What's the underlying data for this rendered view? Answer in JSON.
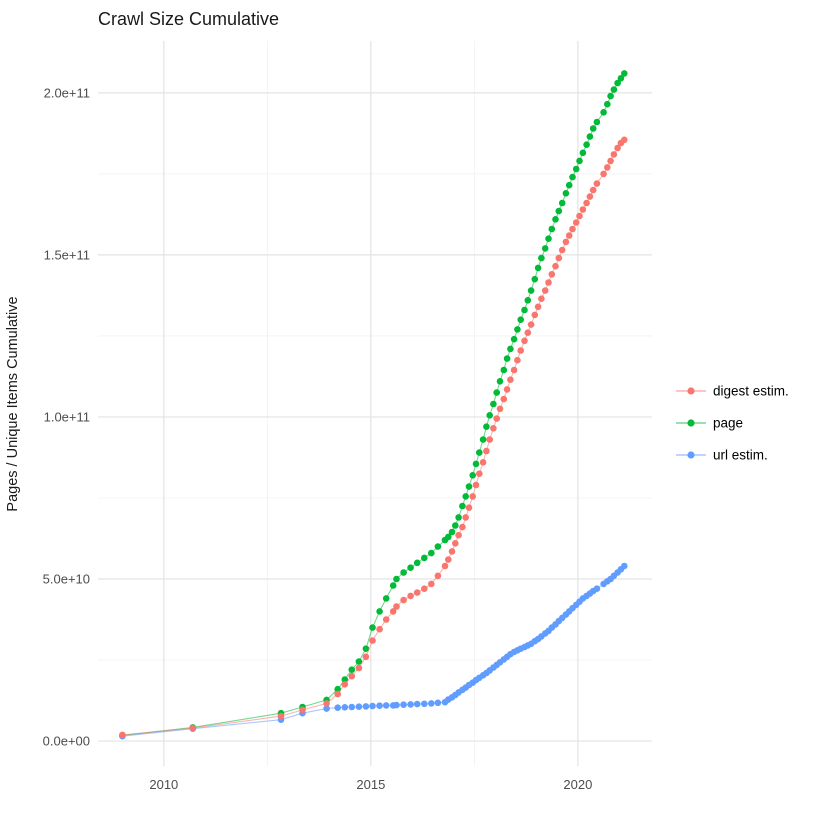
{
  "chart_data": {
    "type": "line",
    "title": "Crawl Size Cumulative",
    "xlabel": "",
    "ylabel": "Pages / Unique Items Cumulative",
    "grid": true,
    "legend_position": "right",
    "background": "#ffffff",
    "gridline_major_color": "#e3e3e3",
    "gridline_minor_color": "#f0f0f0",
    "xlim": [
      2008.41,
      2021.79
    ],
    "ylim": [
      -7700000000,
      216000000000
    ],
    "x_ticks": [
      {
        "value": 2010,
        "label": "2010"
      },
      {
        "value": 2015,
        "label": "2015"
      },
      {
        "value": 2020,
        "label": "2020"
      }
    ],
    "x_minor_ticks": [
      2012.5,
      2017.5
    ],
    "y_ticks": [
      {
        "value": 0,
        "label": "0.0e+00"
      },
      {
        "value": 50000000000,
        "label": "5.0e+10"
      },
      {
        "value": 100000000000,
        "label": "1.0e+11"
      },
      {
        "value": 150000000000,
        "label": "1.5e+11"
      },
      {
        "value": 200000000000,
        "label": "2.0e+11"
      }
    ],
    "y_minor_ticks": [
      25000000000,
      75000000000,
      125000000000,
      175000000000
    ],
    "values_unit": "billions (multiply by 1e9)",
    "x": [
      2009.0,
      2010.7,
      2012.83,
      2013.35,
      2013.93,
      2014.2,
      2014.37,
      2014.54,
      2014.71,
      2014.88,
      2015.04,
      2015.21,
      2015.37,
      2015.54,
      2015.62,
      2015.79,
      2015.96,
      2016.12,
      2016.29,
      2016.46,
      2016.62,
      2016.79,
      2016.87,
      2016.96,
      2017.04,
      2017.12,
      2017.21,
      2017.29,
      2017.37,
      2017.46,
      2017.54,
      2017.62,
      2017.71,
      2017.79,
      2017.87,
      2017.96,
      2018.04,
      2018.12,
      2018.21,
      2018.29,
      2018.37,
      2018.46,
      2018.54,
      2018.62,
      2018.71,
      2018.79,
      2018.87,
      2018.96,
      2019.04,
      2019.12,
      2019.21,
      2019.29,
      2019.37,
      2019.46,
      2019.54,
      2019.62,
      2019.71,
      2019.79,
      2019.87,
      2019.96,
      2020.04,
      2020.12,
      2020.21,
      2020.29,
      2020.37,
      2020.46,
      2020.62,
      2020.71,
      2020.79,
      2020.87,
      2020.96,
      2021.04,
      2021.12
    ],
    "series": [
      {
        "name": "digest estim.",
        "color": "#F8766D",
        "values": [
          1.9,
          4.0,
          7.7,
          9.6,
          11.6,
          14.5,
          17.5,
          20,
          22.5,
          26,
          31,
          34.5,
          37.5,
          40,
          41.5,
          43.5,
          44.8,
          45.8,
          47,
          48.5,
          51,
          54,
          56,
          58.5,
          61,
          63.5,
          66,
          69,
          72,
          75.5,
          79,
          82.5,
          86,
          89.5,
          93,
          96.5,
          99.5,
          102.5,
          105.5,
          108.5,
          111.5,
          114.5,
          117.5,
          120.5,
          123.5,
          126,
          128.5,
          131.5,
          134,
          136.5,
          139,
          141.5,
          144,
          146.5,
          149,
          151.5,
          154,
          156,
          158,
          160,
          162,
          164,
          166,
          168,
          170,
          172,
          175,
          177,
          179,
          181,
          183,
          184.5,
          185.5
        ]
      },
      {
        "name": "page",
        "color": "#00BA38",
        "values": [
          1.7,
          4.2,
          8.6,
          10.5,
          12.7,
          16,
          19,
          22,
          24.5,
          28.5,
          35,
          40,
          44,
          48,
          50,
          52,
          53.5,
          55,
          56.5,
          58,
          60,
          62,
          63,
          64.5,
          66.5,
          69,
          72.5,
          75.5,
          78.5,
          82,
          85.5,
          89,
          93,
          97,
          100.5,
          104,
          107.5,
          111,
          114.5,
          118,
          121,
          124,
          127,
          130,
          133,
          136,
          139,
          142.5,
          146,
          149,
          152,
          155,
          158,
          161,
          163.5,
          166,
          169,
          171.5,
          174,
          176.5,
          179,
          181.5,
          184,
          186.5,
          189,
          191,
          194,
          196.5,
          199,
          201,
          203,
          204.5,
          206
        ]
      },
      {
        "name": "url estim.",
        "color": "#619CFF",
        "values": [
          1.5,
          3.8,
          6.6,
          8.6,
          10.0,
          10.3,
          10.4,
          10.5,
          10.6,
          10.7,
          10.8,
          10.9,
          11.0,
          11.0,
          11.1,
          11.2,
          11.3,
          11.4,
          11.5,
          11.6,
          11.8,
          12.0,
          12.8,
          13.5,
          14.2,
          15.0,
          15.8,
          16.5,
          17.3,
          18.0,
          18.8,
          19.5,
          20.3,
          21.0,
          21.8,
          22.7,
          23.5,
          24.3,
          25.2,
          26.0,
          26.8,
          27.5,
          28.0,
          28.5,
          29.0,
          29.5,
          30.0,
          30.8,
          31.5,
          32.3,
          33.2,
          34.0,
          35.0,
          36.0,
          37.0,
          38.0,
          39.0,
          40.0,
          41.0,
          42.0,
          43.0,
          44.0,
          44.8,
          45.5,
          46.3,
          47.0,
          48.5,
          49.3,
          50.0,
          51.0,
          52.0,
          53.0,
          54.0
        ]
      }
    ]
  }
}
